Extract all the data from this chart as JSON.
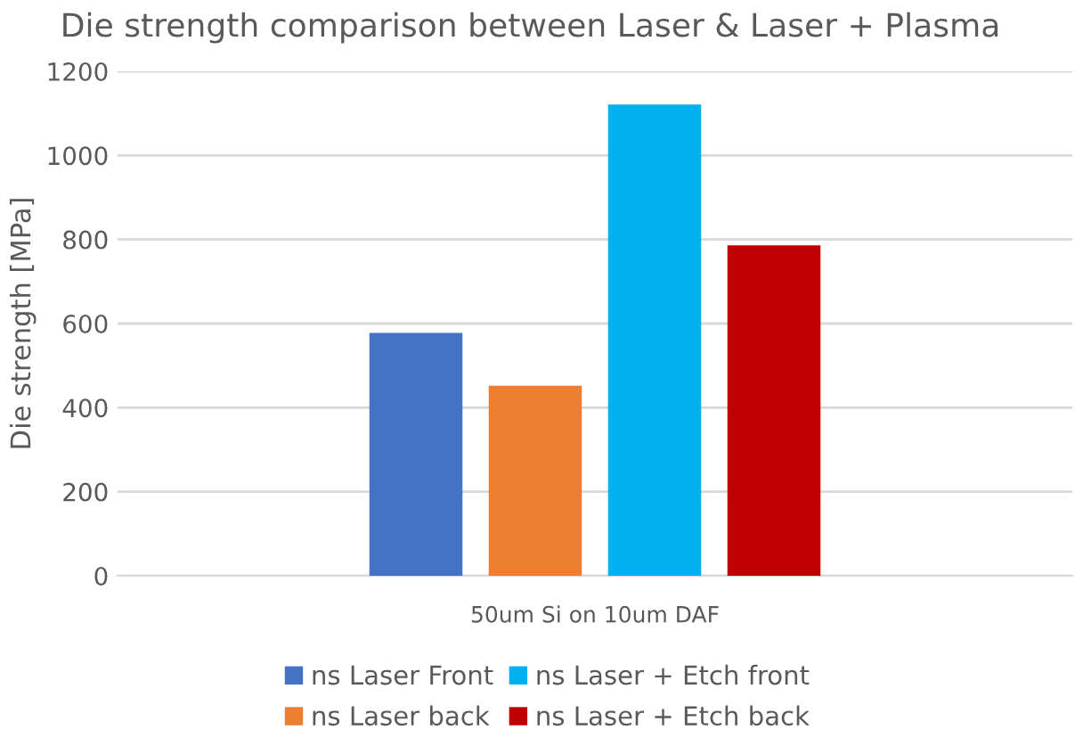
{
  "chart_data": {
    "type": "bar",
    "title": "Die strength comparison between Laser & Laser + Plasma",
    "ylabel": "Die strength [MPa]",
    "categories": [
      "50um Si on 10um DAF"
    ],
    "series": [
      {
        "name": "ns Laser Front",
        "color": "#4472c4",
        "values": [
          578
        ]
      },
      {
        "name": "ns Laser back",
        "color": "#ed7d31",
        "values": [
          452
        ]
      },
      {
        "name": "ns Laser + Etch front",
        "color": "#00b0f0",
        "values": [
          1121
        ]
      },
      {
        "name": "ns Laser + Etch back",
        "color": "#c00000",
        "values": [
          786
        ]
      }
    ],
    "ylim": [
      0,
      1200
    ],
    "yticks": [
      0,
      200,
      400,
      600,
      800,
      1000,
      1200
    ],
    "grid": "y",
    "legend": "bottom"
  }
}
